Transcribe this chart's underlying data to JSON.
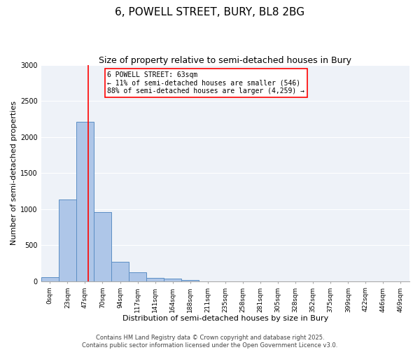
{
  "title_line1": "6, POWELL STREET, BURY, BL8 2BG",
  "title_line2": "Size of property relative to semi-detached houses in Bury",
  "xlabel": "Distribution of semi-detached houses by size in Bury",
  "ylabel": "Number of semi-detached properties",
  "bar_labels": [
    "0sqm",
    "23sqm",
    "47sqm",
    "70sqm",
    "94sqm",
    "117sqm",
    "141sqm",
    "164sqm",
    "188sqm",
    "211sqm",
    "235sqm",
    "258sqm",
    "281sqm",
    "305sqm",
    "328sqm",
    "352sqm",
    "375sqm",
    "399sqm",
    "422sqm",
    "446sqm",
    "469sqm"
  ],
  "bar_values": [
    60,
    1130,
    2210,
    960,
    270,
    120,
    50,
    35,
    20,
    0,
    0,
    0,
    0,
    0,
    0,
    0,
    0,
    0,
    0,
    0,
    0
  ],
  "bar_color": "#aec6e8",
  "bar_edge_color": "#5b8ec4",
  "vline_color": "red",
  "annotation_title": "6 POWELL STREET: 63sqm",
  "annotation_line2": "← 11% of semi-detached houses are smaller (546)",
  "annotation_line3": "88% of semi-detached houses are larger (4,259) →",
  "ylim": [
    0,
    3000
  ],
  "yticks": [
    0,
    500,
    1000,
    1500,
    2000,
    2500,
    3000
  ],
  "background_color": "#eef2f8",
  "footer_line1": "Contains HM Land Registry data © Crown copyright and database right 2025.",
  "footer_line2": "Contains public sector information licensed under the Open Government Licence v3.0.",
  "title_fontsize": 11,
  "subtitle_fontsize": 9,
  "axis_label_fontsize": 8,
  "tick_fontsize": 6.5,
  "footer_fontsize": 6
}
